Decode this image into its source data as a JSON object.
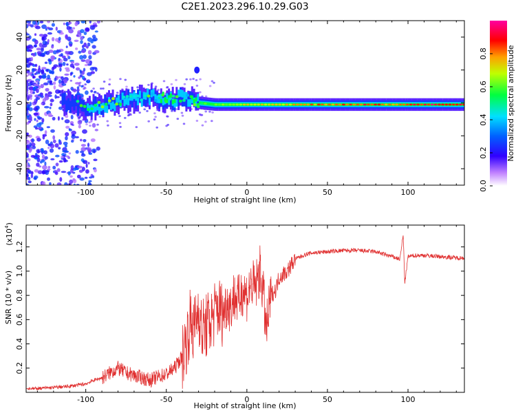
{
  "title": "C2E1.2023.296.10.29.G03",
  "colors": {
    "snr_line": "#e03030",
    "spectrum_base": "#7a00ff",
    "spectrum_center": "#ff0000"
  },
  "chart_data": [
    {
      "type": "heatmap",
      "xlabel": "Height of straight line (km)",
      "ylabel": "Frequency (Hz)",
      "xlim": [
        -137,
        135
      ],
      "ylim": [
        -50,
        50
      ],
      "xticks": [
        -100,
        -50,
        0,
        50,
        100
      ],
      "yticks": [
        -40,
        -20,
        0,
        20,
        40
      ],
      "colorbar": {
        "label": "Normalized spectral amplitude",
        "range": [
          0,
          1
        ],
        "ticks": [
          "0.0",
          "0.2",
          "0.4",
          "0.6",
          "0.8"
        ],
        "tick_values": [
          0,
          0.2,
          0.4,
          0.6,
          0.8
        ]
      },
      "ridge": {
        "height_km": [
          -137,
          -120,
          -110,
          -100,
          -90,
          -80,
          -70,
          -60,
          -50,
          -45,
          -40,
          -35,
          -30,
          -20,
          -10,
          0,
          20,
          40,
          60,
          80,
          90,
          100,
          120,
          135
        ],
        "frequency_hz": [
          0,
          0,
          0,
          -3,
          -2,
          1,
          2,
          4,
          2,
          2,
          4,
          2,
          0,
          -1,
          -1,
          -1,
          -1,
          -1,
          -1,
          -1,
          -1,
          -1,
          -1,
          -1
        ],
        "amplitude": [
          0.15,
          0.2,
          0.3,
          0.35,
          0.4,
          0.45,
          0.5,
          0.45,
          0.55,
          0.5,
          0.4,
          0.5,
          0.6,
          0.65,
          0.7,
          0.75,
          0.8,
          0.85,
          0.9,
          0.95,
          0.8,
          0.95,
          1.0,
          1.0
        ]
      }
    },
    {
      "type": "line",
      "xlabel": "Height of straight line (km)",
      "ylabel": "SNR (10 * v/v)",
      "yscale_label": "(x10",
      "yscale_exp": "4",
      "yscale_close": ")",
      "xlim": [
        -137,
        135
      ],
      "ylim": [
        0,
        1.38
      ],
      "xticks": [
        -100,
        -50,
        0,
        50,
        100
      ],
      "yticks": [
        "0.2",
        "0.4",
        "0.6",
        "0.8",
        "1.0",
        "1.2"
      ],
      "ytick_values": [
        0.2,
        0.4,
        0.6,
        0.8,
        1.0,
        1.2
      ],
      "series": [
        {
          "x": [
            -137,
            -130,
            -120,
            -110,
            -100,
            -95,
            -90,
            -85,
            -80,
            -75,
            -70,
            -65,
            -60,
            -55,
            -50,
            -45,
            -40,
            -37,
            -35,
            -33,
            -30,
            -28,
            -25,
            -22,
            -20,
            -18,
            -15,
            -12,
            -10,
            -8,
            -5,
            -3,
            0,
            3,
            5,
            8,
            10,
            12,
            15,
            18,
            20,
            25,
            30,
            35,
            40,
            50,
            60,
            70,
            80,
            85,
            90,
            95,
            97,
            98,
            100,
            105,
            110,
            120,
            130,
            135
          ],
          "y": [
            0.03,
            0.03,
            0.04,
            0.05,
            0.07,
            0.1,
            0.12,
            0.16,
            0.2,
            0.16,
            0.14,
            0.12,
            0.1,
            0.13,
            0.15,
            0.2,
            0.3,
            0.45,
            0.6,
            0.5,
            0.7,
            0.5,
            0.55,
            0.6,
            0.65,
            0.7,
            0.65,
            0.75,
            0.7,
            0.8,
            0.75,
            0.85,
            0.8,
            0.9,
            0.85,
            1.0,
            0.85,
            0.5,
            0.8,
            0.85,
            0.95,
            1.0,
            1.1,
            1.13,
            1.15,
            1.16,
            1.17,
            1.17,
            1.16,
            1.14,
            1.12,
            1.1,
            1.3,
            0.9,
            1.12,
            1.13,
            1.13,
            1.12,
            1.11,
            1.11
          ]
        }
      ]
    }
  ]
}
